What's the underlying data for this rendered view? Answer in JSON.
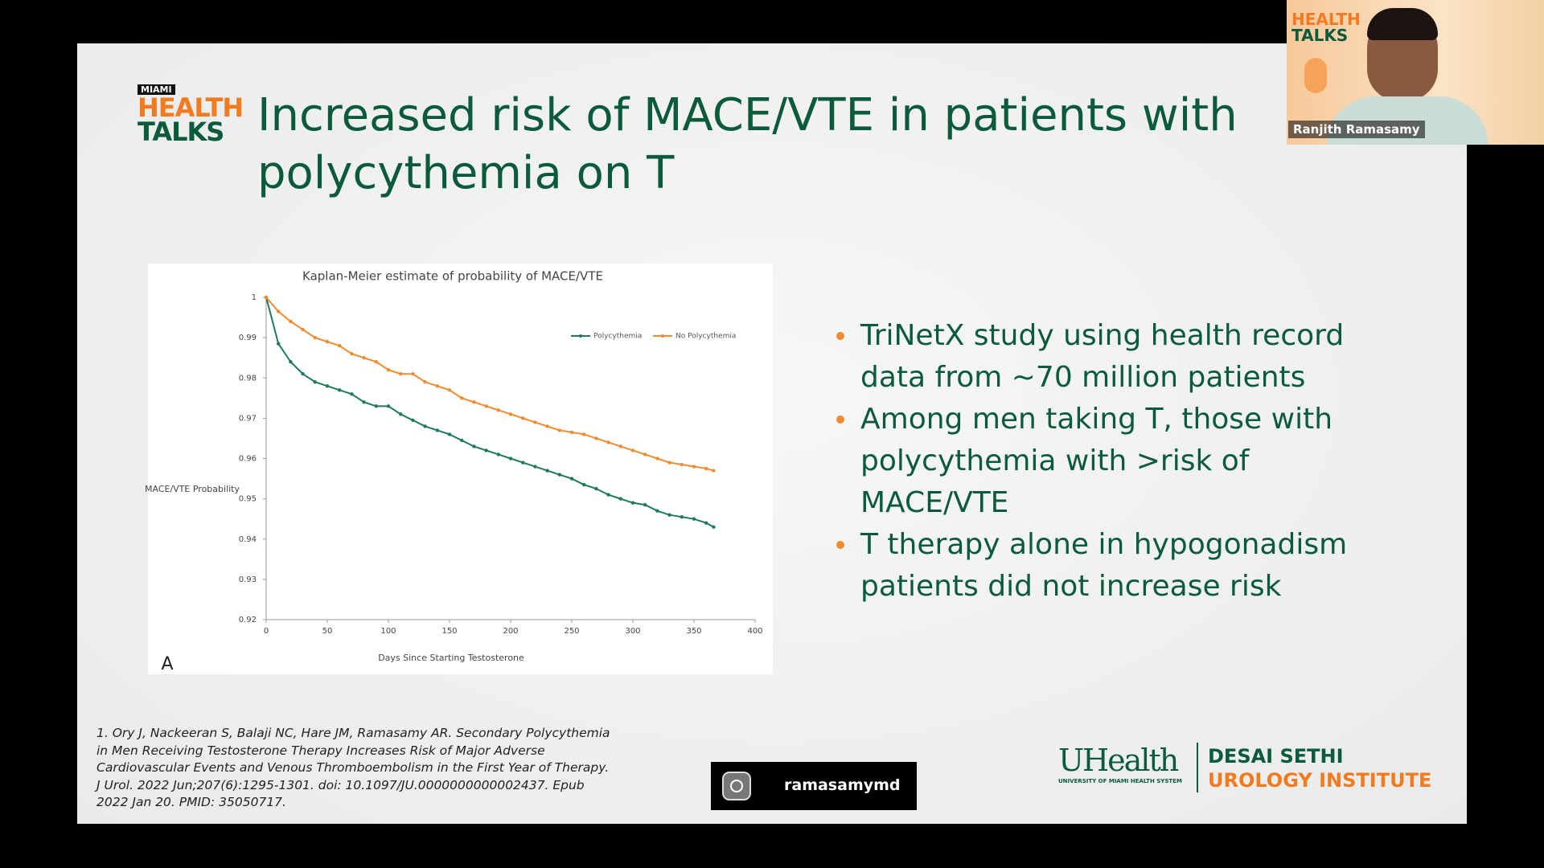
{
  "slide": {
    "logo": {
      "brand": "MIAMI",
      "line1": "HEALTH",
      "line2": "TALKS"
    },
    "title": "Increased risk of MACE/VTE in patients with polycythemia on T",
    "panel_label": "A",
    "bullets": [
      "TriNetX study using health record data from ~70 million patients",
      "Among men taking T, those with polycythemia with >risk of MACE/VTE",
      "T therapy alone in hypogonadism patients did not increase risk"
    ],
    "citation": "1. Ory J, Nackeeran S, Balaji NC, Hare JM, Ramasamy AR. Secondary Polycythemia in Men Receiving Testosterone Therapy Increases Risk of Major Adverse Cardiovascular Events and Venous Thromboembolism in the First Year of Therapy. J Urol. 2022 Jun;207(6):1295-1301. doi: 10.1097/JU.0000000000002437. Epub 2022 Jan 20. PMID: 35050717.",
    "instagram": "ramasamymd",
    "footer": {
      "uhealth": "UHealth",
      "uhealth_sub": "UNIVERSITY OF MIAMI HEALTH SYSTEM",
      "inst1": "DESAI SETHI",
      "inst2": "UROLOGY INSTITUTE"
    }
  },
  "video": {
    "name": "Ranjith Ramasamy",
    "logo1": "HEALTH",
    "logo2": "TALKS"
  },
  "chart_data": {
    "type": "line",
    "title": "Kaplan-Meier estimate of probability of MACE/VTE",
    "x_label": "Days Since Starting Testosterone",
    "y_label": "MACE/VTE Probability",
    "x": [
      0,
      10,
      20,
      30,
      40,
      50,
      60,
      70,
      80,
      90,
      100,
      110,
      120,
      130,
      140,
      150,
      160,
      170,
      180,
      190,
      200,
      210,
      220,
      230,
      240,
      250,
      260,
      270,
      280,
      290,
      300,
      310,
      320,
      330,
      340,
      350,
      360,
      366
    ],
    "series": [
      {
        "name": "Polycythemia",
        "color": "#1f7a5c",
        "values": [
          1,
          0.9885,
          0.984,
          0.981,
          0.979,
          0.978,
          0.977,
          0.976,
          0.974,
          0.973,
          0.973,
          0.971,
          0.9695,
          0.968,
          0.967,
          0.966,
          0.9645,
          0.963,
          0.962,
          0.961,
          0.96,
          0.959,
          0.958,
          0.957,
          0.956,
          0.955,
          0.9535,
          0.9525,
          0.951,
          0.95,
          0.949,
          0.9485,
          0.947,
          0.946,
          0.9455,
          0.945,
          0.944,
          0.943
        ]
      },
      {
        "name": "No Polycythemia",
        "color": "#f28b30",
        "values": [
          1,
          0.9965,
          0.994,
          0.992,
          0.99,
          0.989,
          0.988,
          0.986,
          0.985,
          0.984,
          0.982,
          0.981,
          0.981,
          0.979,
          0.978,
          0.977,
          0.975,
          0.974,
          0.973,
          0.972,
          0.971,
          0.97,
          0.969,
          0.968,
          0.967,
          0.9665,
          0.966,
          0.965,
          0.964,
          0.963,
          0.962,
          0.961,
          0.96,
          0.959,
          0.9585,
          0.958,
          0.9575,
          0.957
        ]
      }
    ],
    "xlim": [
      0,
      400
    ],
    "xticks": [
      0,
      50,
      100,
      150,
      200,
      250,
      300,
      350,
      400
    ],
    "ylim": [
      0.92,
      1
    ],
    "yticks": [
      0.92,
      0.93,
      0.94,
      0.95,
      0.96,
      0.97,
      0.98,
      0.99,
      1
    ],
    "legend": "upper right"
  }
}
